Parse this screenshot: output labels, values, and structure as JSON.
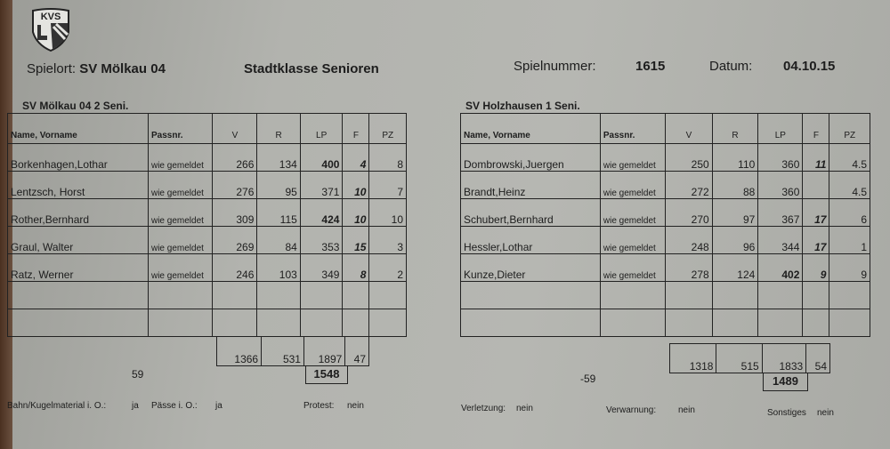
{
  "logo": {
    "text": "KVS",
    "icon": "kvs-shield-logo"
  },
  "header": {
    "spielort_label": "Spielort:",
    "spielort_value": "SV Mölkau 04",
    "league": "Stadtklasse Senioren",
    "spielnummer_label": "Spielnummer:",
    "spielnummer_value": "1615",
    "datum_label": "Datum:",
    "datum_value": "04.10.15"
  },
  "columns": [
    "Name, Vorname",
    "Passnr.",
    "V",
    "R",
    "LP",
    "F",
    "PZ"
  ],
  "home": {
    "team": "SV Mölkau 04 2 Seni.",
    "players": [
      {
        "name": "Borkenhagen,Lothar",
        "pass": "wie gemeldet",
        "v": "266",
        "r": "134",
        "lp": "400",
        "f": "4",
        "pz": "8"
      },
      {
        "name": "Lentzsch, Horst",
        "pass": "wie gemeldet",
        "v": "276",
        "r": "95",
        "lp": "371",
        "f": "10",
        "pz": "7"
      },
      {
        "name": "Rother,Bernhard",
        "pass": "wie gemeldet",
        "v": "309",
        "r": "115",
        "lp": "424",
        "f": "10",
        "pz": "10"
      },
      {
        "name": "Graul, Walter",
        "pass": "wie gemeldet",
        "v": "269",
        "r": "84",
        "lp": "353",
        "f": "15",
        "pz": "3"
      },
      {
        "name": "Ratz, Werner",
        "pass": "wie gemeldet",
        "v": "246",
        "r": "103",
        "lp": "349",
        "f": "8",
        "pz": "2"
      }
    ],
    "totals": {
      "v": "1366",
      "r": "531",
      "lp": "1897",
      "f": "47"
    },
    "result": "1548",
    "diff": "59"
  },
  "away": {
    "team": "SV Holzhausen 1 Seni.",
    "players": [
      {
        "name": "Dombrowski,Juergen",
        "pass": "wie gemeldet",
        "v": "250",
        "r": "110",
        "lp": "360",
        "f": "11",
        "pz": "4.5"
      },
      {
        "name": "Brandt,Heinz",
        "pass": "wie gemeldet",
        "v": "272",
        "r": "88",
        "lp": "360",
        "f": "",
        "pz": "4.5"
      },
      {
        "name": "Schubert,Bernhard",
        "pass": "wie gemeldet",
        "v": "270",
        "r": "97",
        "lp": "367",
        "f": "17",
        "pz": "6"
      },
      {
        "name": "Hessler,Lothar",
        "pass": "wie gemeldet",
        "v": "248",
        "r": "96",
        "lp": "344",
        "f": "17",
        "pz": "1"
      },
      {
        "name": "Kunze,Dieter",
        "pass": "wie gemeldet",
        "v": "278",
        "r": "124",
        "lp": "402",
        "f": "9",
        "pz": "9"
      }
    ],
    "totals": {
      "v": "1318",
      "r": "515",
      "lp": "1833",
      "f": "54"
    },
    "result": "1489",
    "diff": "-59"
  },
  "footer": {
    "bahn_label": "Bahn/Kugelmaterial i. O.:",
    "bahn_value": "ja",
    "paesse_label": "Pässe i. O.:",
    "paesse_value": "ja",
    "protest_label": "Protest:",
    "protest_value": "nein",
    "verletzung_label": "Verletzung:",
    "verletzung_value": "nein",
    "verwarnung_label": "Verwarnung:",
    "verwarnung_value": "nein",
    "sonstiges_label": "Sonstiges",
    "sonstiges_value": "nein"
  }
}
